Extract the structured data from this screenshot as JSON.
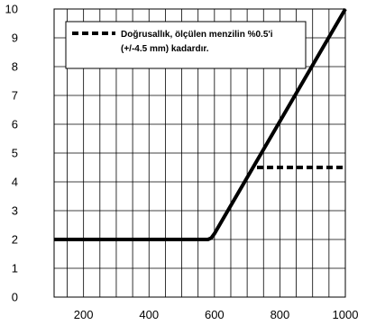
{
  "chart_data": {
    "type": "line",
    "title": "",
    "xlabel": "",
    "ylabel": "",
    "xlim": [
      110,
      1000
    ],
    "ylim": [
      0,
      10
    ],
    "x_ticks": [
      200,
      400,
      600,
      800,
      1000
    ],
    "y_ticks": [
      0,
      1,
      2,
      3,
      4,
      5,
      6,
      7,
      8,
      9,
      10
    ],
    "grid": true,
    "legend_position": "top-left",
    "legend": {
      "line1": "Doğrusallık, ölçülen menzilin %0.5'i",
      "line2": "(+/-4.5 mm) kadardır."
    },
    "series": [
      {
        "style": "solid",
        "color": "#000000",
        "points": [
          [
            110,
            2
          ],
          [
            580,
            2
          ],
          [
            590,
            2.05
          ],
          [
            600,
            2.2
          ],
          [
            1000,
            10
          ]
        ]
      },
      {
        "name": "Doğrusallık, ölçülen menzilin %0.5'i (+/-4.5 mm) kadardır.",
        "style": "dashed",
        "color": "#000000",
        "points": [
          [
            730,
            4.5
          ],
          [
            1000,
            4.5
          ]
        ]
      }
    ]
  }
}
